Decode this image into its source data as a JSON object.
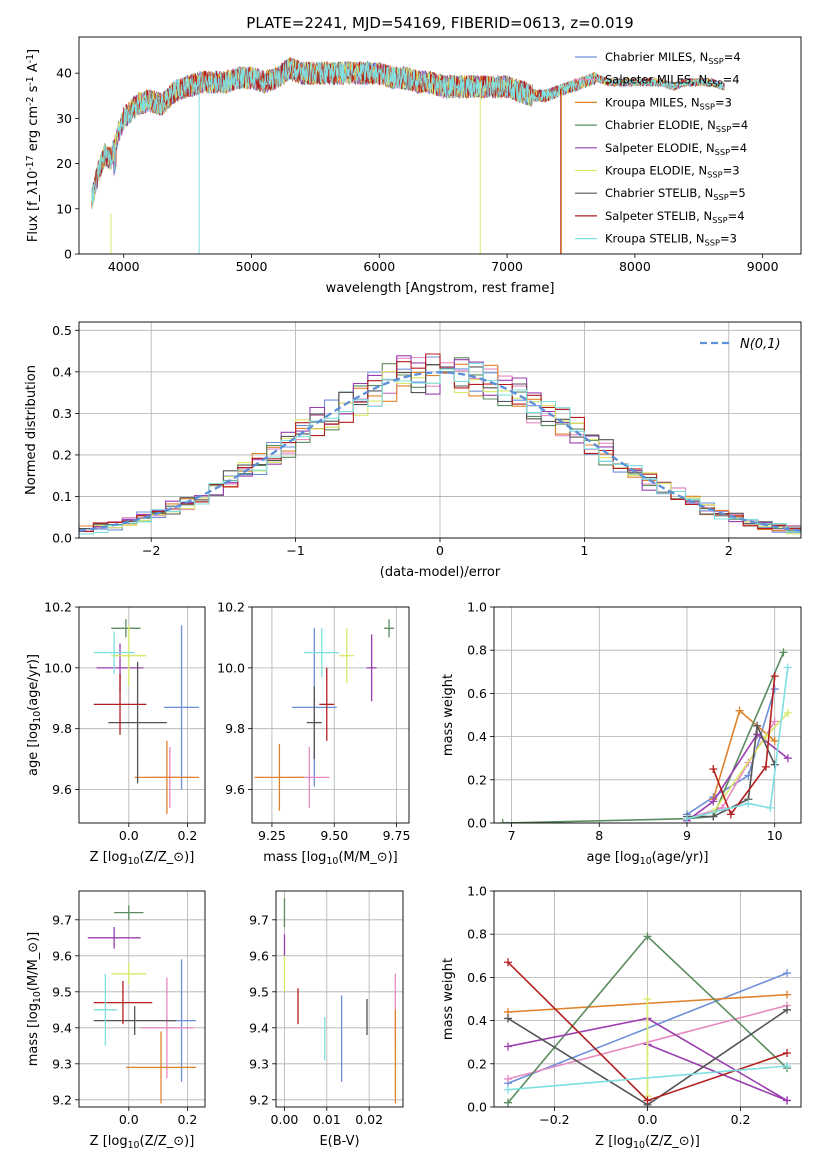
{
  "figure_title": "PLATE=2241, MJD=54169, FIBERID=0613, z=0.019",
  "models": [
    {
      "label": "Chabrier MILES, N$_{SSP}$=4",
      "color": "#6d8fd9"
    },
    {
      "label": "Salpeter MILES, N$_{SSP}$=4",
      "color": "#e78ac3"
    },
    {
      "label": "Kroupa MILES, N$_{SSP}$=3",
      "color": "#e0822c"
    },
    {
      "label": "Chabrier ELODIE, N$_{SSP}$=4",
      "color": "#5b8c5f"
    },
    {
      "label": "Salpeter ELODIE, N$_{SSP}$=4",
      "color": "#9b3fb0"
    },
    {
      "label": "Kroupa ELODIE, N$_{SSP}$=3",
      "color": "#d9e86a"
    },
    {
      "label": "Chabrier STELIB, N$_{SSP}$=5",
      "color": "#555555"
    },
    {
      "label": "Salpeter STELIB, N$_{SSP}$=4",
      "color": "#b41e1e"
    },
    {
      "label": "Kroupa STELIB, N$_{SSP}$=3",
      "color": "#80dfe0"
    }
  ],
  "chart_data": [
    {
      "type": "line",
      "panel": "spectrum",
      "xlabel": "wavelength [Angstrom, rest frame]",
      "ylabel": "Flux [f$_\\lambda$10$^{-17}$ erg cm$^{-2}$ s$^{-1}$ A$^{-1}$]",
      "xlim": [
        3650,
        9300
      ],
      "ylim": [
        0,
        48
      ],
      "xticks": [
        4000,
        5000,
        6000,
        7000,
        8000,
        9000
      ],
      "yticks": [
        0,
        10,
        20,
        30,
        40
      ],
      "grid": false,
      "legend": "top-right",
      "continuum": {
        "x": [
          3750,
          3800,
          3850,
          3900,
          3950,
          4000,
          4100,
          4200,
          4300,
          4400,
          4500,
          4600,
          4700,
          4800,
          4900,
          5000,
          5100,
          5200,
          5300,
          5400,
          5500,
          5600,
          5700,
          5800,
          5900,
          6000,
          6100,
          6200,
          6300,
          6400,
          6500,
          6600,
          6700,
          6800,
          6900,
          7000,
          7100,
          7200,
          7300,
          7400,
          7500,
          7600,
          7700,
          7800,
          7900,
          8000,
          8100,
          8200,
          8300,
          8400,
          8500,
          8600,
          8700
        ],
        "y": [
          12,
          18,
          22,
          21,
          26,
          30,
          33,
          34,
          33,
          36,
          37,
          38,
          38,
          38,
          39,
          39,
          38,
          39,
          41,
          40,
          40,
          40,
          40,
          40,
          40,
          40,
          39,
          39,
          38,
          38,
          37,
          37,
          37,
          37,
          37,
          37,
          36,
          35,
          35,
          36,
          37,
          38,
          39,
          38,
          38,
          38,
          38,
          38,
          37,
          38,
          38,
          38,
          37
        ]
      },
      "dropouts": [
        {
          "series": "Kroupa ELODIE, N$_{SSP}$=3",
          "x": 3900,
          "y_from": 9,
          "y_to": 0
        },
        {
          "series": "Kroupa STELIB, N$_{SSP}$=3",
          "x": 4590,
          "y_from": 38,
          "y_to": 0
        },
        {
          "series": "Kroupa ELODIE, N$_{SSP}$=3",
          "x": 6790,
          "y_from": 38,
          "y_to": 0
        },
        {
          "series": "Salpeter STELIB, N$_{SSP}$=4",
          "x": 7420,
          "y_from": 36,
          "y_to": 0
        },
        {
          "series": "Kroupa MILES, N$_{SSP}$=3",
          "x": 7425,
          "y_from": 36,
          "y_to": 0
        }
      ]
    },
    {
      "type": "line",
      "panel": "residuals",
      "xlabel": "(data-model)/error",
      "ylabel": "Normed distribution",
      "xlim": [
        -2.5,
        2.5
      ],
      "ylim": [
        0,
        0.52
      ],
      "xticks": [
        -2,
        -1,
        0,
        1,
        2
      ],
      "yticks": [
        0.0,
        0.1,
        0.2,
        0.3,
        0.4,
        0.5
      ],
      "grid": true,
      "legend": "top-right",
      "reference": {
        "label": "$\\mathcal{N}(0,1)$",
        "color": "#5b8fd9"
      },
      "bins": {
        "start": -2.5,
        "width": 0.1
      }
    },
    {
      "type": "scatter",
      "panel": "age-vs-Z",
      "xlabel": "Z [log$_{10}$(Z/Z$_\\odot$)]",
      "ylabel": "age  [log$_{10}$(age/yr)]",
      "xlim": [
        -0.17,
        0.26
      ],
      "ylim": [
        9.49,
        10.2
      ],
      "xticks": [
        0.0,
        0.2
      ],
      "xticklabels": [
        "0.0",
        "0.2"
      ],
      "yticks": [
        9.6,
        9.8,
        10.0,
        10.2
      ],
      "yticklabels": [
        "9.6",
        "9.8",
        "10.0",
        "10.2"
      ],
      "grid": true,
      "points": [
        {
          "x": 0.18,
          "y": 9.87,
          "xerr": 0.06,
          "yerr": 0.27
        },
        {
          "x": 0.14,
          "y": 9.64,
          "xerr": 0.08,
          "yerr": 0.1
        },
        {
          "x": 0.13,
          "y": 9.64,
          "xerr": 0.11,
          "yerr": 0.12
        },
        {
          "x": -0.01,
          "y": 10.13,
          "xerr": 0.05,
          "yerr": 0.03
        },
        {
          "x": -0.03,
          "y": 10.0,
          "xerr": 0.08,
          "yerr": 0.08
        },
        {
          "x": 0.0,
          "y": 10.04,
          "xerr": 0.06,
          "yerr": 0.1
        },
        {
          "x": 0.03,
          "y": 9.82,
          "xerr": 0.1,
          "yerr": 0.2
        },
        {
          "x": -0.03,
          "y": 9.88,
          "xerr": 0.09,
          "yerr": 0.1
        },
        {
          "x": -0.05,
          "y": 10.05,
          "xerr": 0.07,
          "yerr": 0.07
        }
      ]
    },
    {
      "type": "scatter",
      "panel": "age-vs-mass",
      "xlabel": "mass [log$_{10}$(M/M$_\\odot$)]",
      "ylabel": "",
      "xlim": [
        9.17,
        9.8
      ],
      "ylim": [
        9.49,
        10.2
      ],
      "xticks": [
        9.25,
        9.5,
        9.75
      ],
      "xticklabels": [
        "9.25",
        "9.50",
        "9.75"
      ],
      "yticks": [
        9.6,
        9.8,
        10.0,
        10.2
      ],
      "yticklabels": [
        "9.6",
        "9.8",
        "10.0",
        "10.2"
      ],
      "grid": true,
      "points": [
        {
          "x": 9.42,
          "y": 9.87,
          "xerr": 0.09,
          "yerr": 0.26
        },
        {
          "x": 9.4,
          "y": 9.64,
          "xerr": 0.08,
          "yerr": 0.1
        },
        {
          "x": 9.28,
          "y": 9.64,
          "xerr": 0.1,
          "yerr": 0.11
        },
        {
          "x": 9.72,
          "y": 10.13,
          "xerr": 0.02,
          "yerr": 0.03
        },
        {
          "x": 9.65,
          "y": 10.0,
          "xerr": 0.02,
          "yerr": 0.11
        },
        {
          "x": 9.55,
          "y": 10.04,
          "xerr": 0.03,
          "yerr": 0.09
        },
        {
          "x": 9.42,
          "y": 9.82,
          "xerr": 0.03,
          "yerr": 0.12
        },
        {
          "x": 9.47,
          "y": 9.88,
          "xerr": 0.03,
          "yerr": 0.12
        },
        {
          "x": 9.45,
          "y": 10.05,
          "xerr": 0.07,
          "yerr": 0.08
        }
      ]
    },
    {
      "type": "line",
      "panel": "mass-weight-vs-age",
      "xlabel": "age  [log$_{10}$(age/yr)]",
      "ylabel": "mass weight",
      "xlim": [
        6.8,
        10.3
      ],
      "ylim": [
        0,
        1
      ],
      "xticks": [
        7,
        8,
        9,
        10
      ],
      "yticks": [
        0.0,
        0.2,
        0.4,
        0.6,
        0.8,
        1.0
      ],
      "grid": true,
      "series": [
        {
          "x": [
            9.0,
            9.3,
            9.7,
            10.0
          ],
          "y": [
            0.04,
            0.12,
            0.22,
            0.62
          ]
        },
        {
          "x": [
            9.0,
            9.4,
            9.7,
            10.0
          ],
          "y": [
            0.02,
            0.07,
            0.28,
            0.47
          ]
        },
        {
          "x": [
            9.3,
            9.6,
            10.0
          ],
          "y": [
            0.11,
            0.52,
            0.38
          ]
        },
        {
          "x": [
            6.9,
            9.0,
            9.3,
            10.1
          ],
          "y": [
            0.0,
            0.02,
            0.03,
            0.79
          ]
        },
        {
          "x": [
            9.0,
            9.3,
            9.8,
            10.15
          ],
          "y": [
            0.01,
            0.1,
            0.41,
            0.3
          ]
        },
        {
          "x": [
            9.3,
            9.9,
            10.15
          ],
          "y": [
            0.05,
            0.4,
            0.51
          ]
        },
        {
          "x": [
            9.0,
            9.3,
            9.7,
            9.8,
            10.0
          ],
          "y": [
            0.03,
            0.03,
            0.11,
            0.45,
            0.27
          ]
        },
        {
          "x": [
            9.3,
            9.5,
            9.9,
            10.0
          ],
          "y": [
            0.25,
            0.04,
            0.26,
            0.68
          ]
        },
        {
          "x": [
            9.0,
            9.7,
            9.95,
            10.15
          ],
          "y": [
            0.02,
            0.09,
            0.07,
            0.72
          ]
        }
      ]
    },
    {
      "type": "scatter",
      "panel": "mass-vs-Z",
      "xlabel": "Z [log$_{10}$(Z/Z$_\\odot$)]",
      "ylabel": "mass [log$_{10}$(M/M$_\\odot$)]",
      "xlim": [
        -0.17,
        0.26
      ],
      "ylim": [
        9.18,
        9.78
      ],
      "xticks": [
        0.0,
        0.2
      ],
      "xticklabels": [
        "0.0",
        "0.2"
      ],
      "yticks": [
        9.2,
        9.3,
        9.4,
        9.5,
        9.6,
        9.7
      ],
      "yticklabels": [
        "9.2",
        "9.3",
        "9.4",
        "9.5",
        "9.6",
        "9.7"
      ],
      "grid": true,
      "points": [
        {
          "x": 0.18,
          "y": 9.42,
          "xerr": 0.05,
          "yerr": 0.17
        },
        {
          "x": 0.13,
          "y": 9.4,
          "xerr": 0.09,
          "yerr": 0.14
        },
        {
          "x": 0.11,
          "y": 9.29,
          "xerr": 0.12,
          "yerr": 0.1
        },
        {
          "x": 0.0,
          "y": 9.72,
          "xerr": 0.05,
          "yerr": 0.02
        },
        {
          "x": -0.05,
          "y": 9.65,
          "xerr": 0.09,
          "yerr": 0.03
        },
        {
          "x": 0.0,
          "y": 9.55,
          "xerr": 0.06,
          "yerr": 0.03
        },
        {
          "x": 0.02,
          "y": 9.42,
          "xerr": 0.14,
          "yerr": 0.04
        },
        {
          "x": -0.02,
          "y": 9.47,
          "xerr": 0.1,
          "yerr": 0.06
        },
        {
          "x": -0.08,
          "y": 9.45,
          "xerr": 0.04,
          "yerr": 0.1
        }
      ]
    },
    {
      "type": "scatter",
      "panel": "mass-vs-EBV",
      "xlabel": "E(B-V)",
      "ylabel": "",
      "xlim": [
        -0.002,
        0.028
      ],
      "ylim": [
        9.18,
        9.78
      ],
      "xticks": [
        0.0,
        0.01,
        0.02
      ],
      "xticklabels": [
        "0.00",
        "0.01",
        "0.02"
      ],
      "yticks": [
        9.2,
        9.3,
        9.4,
        9.5,
        9.6,
        9.7
      ],
      "yticklabels": [
        "9.2",
        "9.3",
        "9.4",
        "9.5",
        "9.6",
        "9.7"
      ],
      "grid": true,
      "points": [
        {
          "x": 0.0135,
          "y": 9.37,
          "xerr": 0,
          "yerr": 0.12
        },
        {
          "x": 0.0262,
          "y": 9.45,
          "xerr": 0,
          "yerr": 0.1
        },
        {
          "x": 0.0262,
          "y": 9.32,
          "xerr": 0,
          "yerr": 0.13
        },
        {
          "x": 0.0,
          "y": 9.72,
          "xerr": 0,
          "yerr": 0.04
        },
        {
          "x": 0.0,
          "y": 9.63,
          "xerr": 0,
          "yerr": 0.03
        },
        {
          "x": 0.0,
          "y": 9.55,
          "xerr": 0,
          "yerr": 0.05
        },
        {
          "x": 0.0195,
          "y": 9.43,
          "xerr": 0,
          "yerr": 0.05
        },
        {
          "x": 0.0032,
          "y": 9.46,
          "xerr": 0,
          "yerr": 0.05
        },
        {
          "x": 0.0095,
          "y": 9.37,
          "xerr": 0,
          "yerr": 0.06
        }
      ]
    },
    {
      "type": "line",
      "panel": "mass-weight-vs-Z",
      "xlabel": "Z [log$_{10}$(Z/Z$_\\odot$)]",
      "ylabel": "mass weight",
      "xlim": [
        -0.33,
        0.33
      ],
      "ylim": [
        0,
        1
      ],
      "xticks": [
        -0.2,
        0.0,
        0.2
      ],
      "xticklabels": [
        "−0.2",
        "0.0",
        "0.2"
      ],
      "yticks": [
        0.0,
        0.2,
        0.4,
        0.6,
        0.8,
        1.0
      ],
      "grid": true,
      "series": [
        {
          "x": [
            -0.3,
            0.3
          ],
          "y": [
            0.11,
            0.62
          ]
        },
        {
          "x": [
            -0.3,
            0.3
          ],
          "y": [
            0.13,
            0.47
          ]
        },
        {
          "x": [
            -0.3,
            0.3
          ],
          "y": [
            0.44,
            0.52
          ]
        },
        {
          "x": [
            -0.3,
            0.0,
            0.3
          ],
          "y": [
            0.02,
            0.79,
            0.18
          ]
        },
        {
          "x": [
            -0.3,
            0.0,
            0.3
          ],
          "y": [
            0.28,
            0.41,
            0.03
          ],
          "extra": {
            "x": [
              0.0,
              0.3
            ],
            "y": [
              0.29,
              0.03
            ]
          }
        },
        {
          "x": [
            0.0,
            0.0
          ],
          "y": [
            0.05,
            0.5
          ]
        },
        {
          "x": [
            -0.3,
            0.0,
            0.3
          ],
          "y": [
            0.41,
            0.01,
            0.45
          ]
        },
        {
          "x": [
            -0.3,
            0.0,
            0.3
          ],
          "y": [
            0.67,
            0.03,
            0.25
          ]
        },
        {
          "x": [
            -0.3,
            0.3
          ],
          "y": [
            0.08,
            0.19
          ]
        }
      ]
    }
  ]
}
